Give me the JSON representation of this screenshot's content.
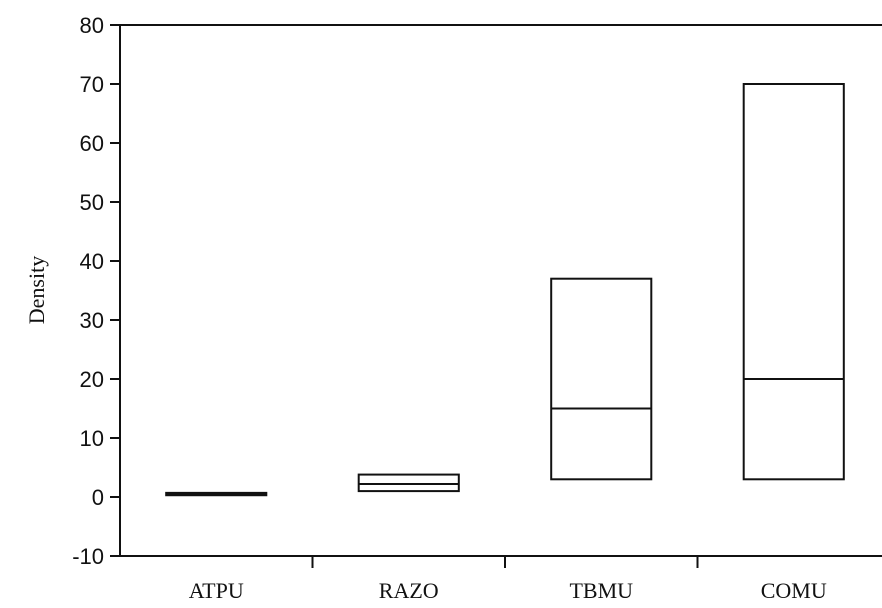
{
  "chart_data": {
    "type": "box",
    "title": "",
    "xlabel": "",
    "ylabel": "Density",
    "ylim": [
      -10,
      80
    ],
    "yticks": [
      -10,
      0,
      10,
      20,
      30,
      40,
      50,
      60,
      70,
      80
    ],
    "grid": false,
    "categories": [
      "ATPU",
      "RAZO",
      "TBMU",
      "COMU"
    ],
    "boxes": [
      {
        "category": "ATPU",
        "low": 0.3,
        "median": 0.5,
        "high": 0.7
      },
      {
        "category": "RAZO",
        "low": 1.0,
        "median": 2.2,
        "high": 3.8
      },
      {
        "category": "TBMU",
        "low": 3.0,
        "median": 15.0,
        "high": 37.0
      },
      {
        "category": "COMU",
        "low": 3.0,
        "median": 20.0,
        "high": 70.0
      }
    ]
  }
}
